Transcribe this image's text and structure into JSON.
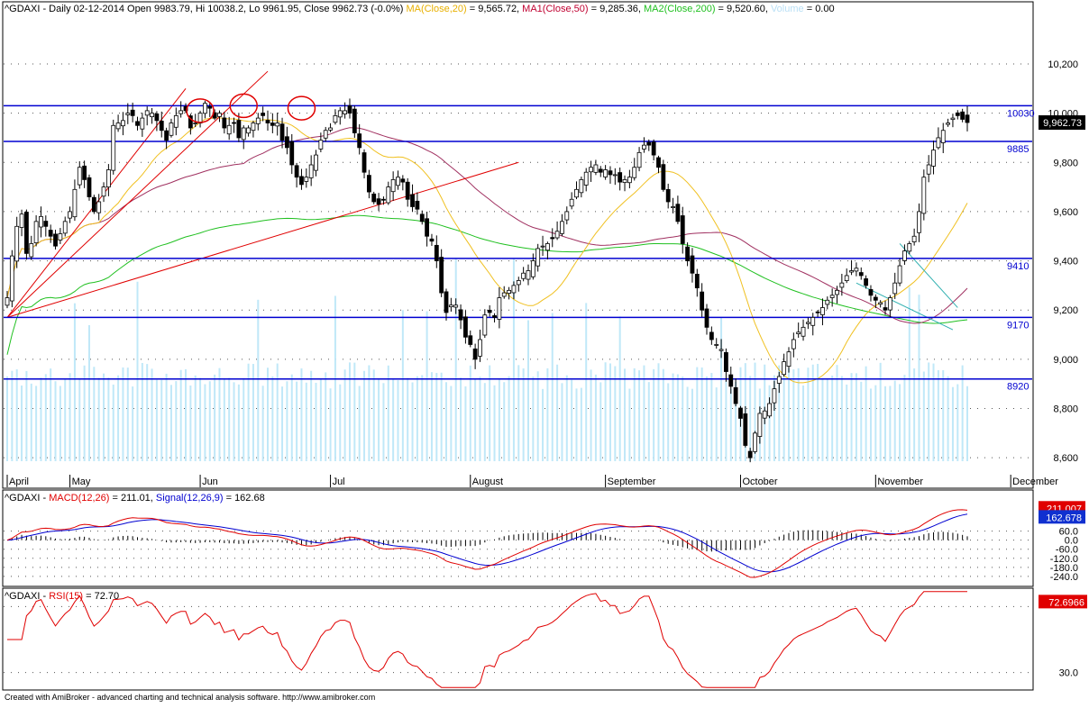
{
  "header": {
    "symbol": "^GDAXI",
    "info": " - Daily 02-12-2014 Open 9983.79, Hi 10038.2, Lo 9961.95, Close 9962.73 (-0.0%) ",
    "ma20_label": "MA(Close,20)",
    "ma20_value": " = 9,565.72, ",
    "ma50_label": "MA1(Close,50)",
    "ma50_value": " = 9,285.36, ",
    "ma200_label": "MA2(Close,200)",
    "ma200_value": " = 9,520.60, ",
    "volume_label": "Volume",
    "volume_value": " = 0.00"
  },
  "macd_header": {
    "symbol": "^GDAXI",
    "sep": " - ",
    "macd_label": "MACD(12,26)",
    "macd_value": " = 211.01, ",
    "signal_label": "Signal(12,26,9)",
    "signal_value": " = 162.68"
  },
  "rsi_header": {
    "symbol": "^GDAXI",
    "sep": " - ",
    "rsi_label": "RSI(15)",
    "rsi_value": " = 72.70"
  },
  "footer": "Created with AmiBroker - advanced charting and technical analysis software. http://www.amibroker.com",
  "colors": {
    "up": "#ffffff",
    "down": "#000000",
    "ma20": "#f0c020",
    "ma50": "#a03060",
    "ma200": "#20c020",
    "volume": "#c0e8f8",
    "levels": "#0000d0",
    "trend": "#e00000",
    "macd": "#e00000",
    "signal": "#0000d0",
    "rsi": "#e00000"
  },
  "chart_data": {
    "type": "candlestick",
    "ylim": [
      8520,
      10350
    ],
    "y_ticks": [
      8600,
      8800,
      9000,
      9200,
      9400,
      9600,
      9800,
      10000,
      10200
    ],
    "y_tick_labels": [
      "8,600",
      "8,800",
      "9,000",
      "9,200",
      "9,400",
      "9,600",
      "9,800",
      "10,000",
      "10,200"
    ],
    "x_labels": [
      {
        "i": 0,
        "label": "April"
      },
      {
        "i": 13,
        "label": "May"
      },
      {
        "i": 40,
        "label": "Jun"
      },
      {
        "i": 67,
        "label": "Jul"
      },
      {
        "i": 96,
        "label": "August"
      },
      {
        "i": 124,
        "label": "September"
      },
      {
        "i": 152,
        "label": "October"
      },
      {
        "i": 180,
        "label": "November"
      },
      {
        "i": 208,
        "label": "December"
      }
    ],
    "levels": [
      {
        "value": 10030,
        "label": "10030"
      },
      {
        "value": 9885,
        "label": "9885"
      },
      {
        "value": 9410,
        "label": "9410"
      },
      {
        "value": 9170,
        "label": "9170"
      },
      {
        "value": 8920,
        "label": "8920"
      }
    ],
    "price_tag": "9,962.73",
    "closes": [
      9250,
      9420,
      9540,
      9590,
      9430,
      9470,
      9560,
      9580,
      9540,
      9500,
      9460,
      9510,
      9560,
      9600,
      9690,
      9780,
      9730,
      9660,
      9600,
      9640,
      9700,
      9770,
      9950,
      9960,
      9970,
      10000,
      9990,
      9950,
      9980,
      10010,
      10000,
      9970,
      9930,
      9890,
      9960,
      9990,
      10010,
      10010,
      9940,
      9960,
      10000,
      10040,
      10020,
      9980,
      10000,
      9940,
      9950,
      9960,
      9900,
      9940,
      9940,
      9960,
      9980,
      9990,
      9960,
      9950,
      9960,
      9890,
      9860,
      9790,
      9740,
      9710,
      9740,
      9790,
      9830,
      9890,
      9930,
      9940,
      9990,
      10010,
      10010,
      10000,
      9920,
      9860,
      9760,
      9680,
      9640,
      9630,
      9650,
      9700,
      9730,
      9740,
      9720,
      9650,
      9620,
      9610,
      9560,
      9500,
      9480,
      9400,
      9270,
      9190,
      9220,
      9220,
      9160,
      9090,
      9060,
      9000,
      9080,
      9180,
      9190,
      9170,
      9250,
      9270,
      9280,
      9300,
      9320,
      9350,
      9360,
      9400,
      9450,
      9460,
      9470,
      9490,
      9520,
      9560,
      9600,
      9650,
      9690,
      9730,
      9760,
      9780,
      9790,
      9760,
      9770,
      9750,
      9750,
      9720,
      9730,
      9740,
      9780,
      9840,
      9870,
      9870,
      9830,
      9780,
      9690,
      9640,
      9620,
      9560,
      9470,
      9400,
      9350,
      9290,
      9200,
      9130,
      9080,
      9060,
      9040,
      8950,
      8890,
      8820,
      8760,
      8650,
      8600,
      8700,
      8780,
      8790,
      8820,
      8880,
      8930,
      8990,
      9030,
      9080,
      9110,
      9130,
      9150,
      9170,
      9190,
      9210,
      9240,
      9260,
      9280,
      9310,
      9340,
      9360,
      9370,
      9340,
      9300,
      9260,
      9240,
      9230,
      9200,
      9250,
      9310,
      9380,
      9440,
      9470,
      9500,
      9600,
      9740,
      9790,
      9850,
      9900,
      9930,
      9960,
      9980,
      9990,
      9975,
      9962
    ]
  },
  "macd_data": {
    "ylim": [
      -300,
      320
    ],
    "ticks": [
      60,
      0,
      -60,
      -120,
      -180,
      -240
    ],
    "tick_labels": [
      "60.0",
      "0.0",
      "-60.0",
      "-120.0",
      "-180.0",
      "-240.0"
    ],
    "macd_tag": "211.007",
    "signal_tag": "162.678"
  },
  "rsi_data": {
    "ylim": [
      20,
      80
    ],
    "tick": 30,
    "tick_label": "30.0",
    "rsi_tag": "72.6966"
  }
}
